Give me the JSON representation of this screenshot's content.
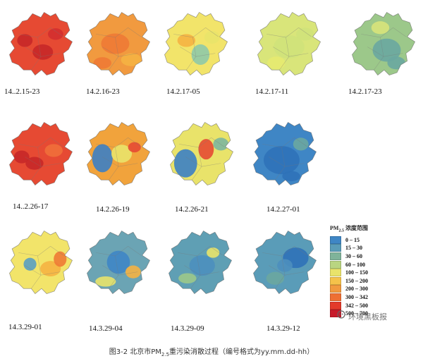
{
  "panels": [
    {
      "label": "14..2.15-23",
      "base": "#e64a33",
      "blobs": [
        {
          "c": "#c62828"
        },
        {
          "c": "#c62828"
        },
        {
          "c": "#d32f2f"
        }
      ]
    },
    {
      "label": "14.2.16-23",
      "base": "#f19a3f",
      "blobs": [
        {
          "c": "#ee7a35"
        },
        {
          "c": "#f5b342"
        },
        {
          "c": "#ee7a35"
        }
      ]
    },
    {
      "label": "14.2.17-05",
      "base": "#f2e46a",
      "blobs": [
        {
          "c": "#8fc9a8"
        },
        {
          "c": "#f5b342"
        },
        {
          "c": "#e9e36a"
        }
      ]
    },
    {
      "label": "14.2.17-11",
      "base": "#d9e57a",
      "blobs": [
        {
          "c": "#cfe27a"
        },
        {
          "c": "#e6ea70"
        },
        {
          "c": "#cfe27a"
        }
      ]
    },
    {
      "label": "14.2.17-23",
      "base": "#9cc88a",
      "blobs": [
        {
          "c": "#6aa7a0"
        },
        {
          "c": "#d8e37a"
        },
        {
          "c": "#6aa7a0"
        }
      ]
    },
    {
      "label": "14..2.26-17",
      "base": "#e64a33",
      "blobs": [
        {
          "c": "#c62828"
        },
        {
          "c": "#f06f3a"
        },
        {
          "c": "#c62828"
        }
      ]
    },
    {
      "label": "14.2.26-19",
      "base": "#f1a33c",
      "blobs": [
        {
          "c": "#3c7fc4"
        },
        {
          "c": "#e9e36a"
        },
        {
          "c": "#e64a33"
        }
      ]
    },
    {
      "label": "14.2.26-21",
      "base": "#e9e36a",
      "blobs": [
        {
          "c": "#3c7fc4"
        },
        {
          "c": "#e64a33"
        },
        {
          "c": "#7db69f"
        }
      ]
    },
    {
      "label": "14.2.27-01",
      "base": "#3f86c5",
      "blobs": [
        {
          "c": "#2f72b8"
        },
        {
          "c": "#6aa7a0"
        },
        {
          "c": "#2f72b8"
        }
      ]
    },
    {
      "label": "14.3.29-01",
      "base": "#f2e46a",
      "blobs": [
        {
          "c": "#5a9fc2"
        },
        {
          "c": "#f5b342"
        },
        {
          "c": "#ee7a35"
        }
      ]
    },
    {
      "label": "14.3.29-04",
      "base": "#6ba4b4",
      "blobs": [
        {
          "c": "#3f86c5"
        },
        {
          "c": "#e9e36a"
        },
        {
          "c": "#f5b342"
        }
      ]
    },
    {
      "label": "14.3.29-09",
      "base": "#5f9fb4",
      "blobs": [
        {
          "c": "#4d8fbe"
        },
        {
          "c": "#9cc88a"
        },
        {
          "c": "#e9e36a"
        }
      ]
    },
    {
      "label": "14.3.29-12",
      "base": "#5a9cb8",
      "blobs": [
        {
          "c": "#2f72b8"
        },
        {
          "c": "#6aa7a0"
        },
        {
          "c": "#4d8fbe"
        }
      ]
    }
  ],
  "legend": {
    "title_main": "PM",
    "title_sub": "2.5",
    "title_rest": " 浓度范围",
    "items": [
      {
        "label": "0 – 15",
        "color": "#3f86c5"
      },
      {
        "label": "15 – 30",
        "color": "#5a9cb8"
      },
      {
        "label": "30 – 60",
        "color": "#7fb39a"
      },
      {
        "label": "60 – 100",
        "color": "#b9d581"
      },
      {
        "label": "100 – 150",
        "color": "#e9e36a"
      },
      {
        "label": "150 – 200",
        "color": "#f5c24a"
      },
      {
        "label": "200 – 300",
        "color": "#f19a3f"
      },
      {
        "label": "300 – 342",
        "color": "#ee6f33"
      },
      {
        "label": "342 – 500",
        "color": "#e33a2a"
      },
      {
        "label": "500 – 700",
        "color": "#c81a2a"
      }
    ]
  },
  "watermark": "环境黑板报",
  "caption": {
    "prefix": "图3-2 北京市PM",
    "sub": "2.5",
    "suffix": "重污染消散过程（编号格式为yy.mm.dd-hh）"
  }
}
